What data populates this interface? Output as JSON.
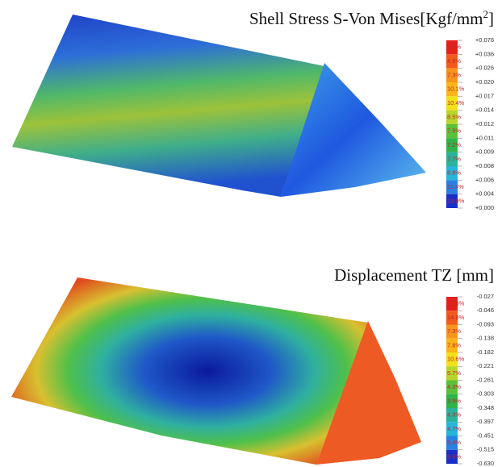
{
  "panels": [
    {
      "title": {
        "text": "Shell Stress S-Von Mises[Kgf/mm",
        "superscript": "2",
        "suffix": "]"
      },
      "legend": {
        "ticks": [
          "+0.076",
          "+0.036",
          "+0.026",
          "+0.020",
          "+0.017",
          "+0.014",
          "+0.012",
          "+0.011",
          "+0.009",
          "+0.008",
          "+0.006",
          "+0.004",
          "+0.000"
        ],
        "percentages": [
          "2.5%",
          "4.6%",
          "7.3%",
          "10.1%",
          "10.4%",
          "8.5%",
          "7.5%",
          "7.2%",
          "7.7%",
          "8.8%",
          "11.4%",
          "13.9%"
        ]
      }
    },
    {
      "title": {
        "text": "Displacement TZ [mm]"
      },
      "legend": {
        "ticks": [
          "-0.027",
          "-0.046",
          "-0.093",
          "-0.138",
          "-0.182",
          "-0.221",
          "-0.261",
          "-0.303",
          "-0.348",
          "-0.397",
          "-0.451",
          "-0.515",
          "-0.630"
        ],
        "percentages": [
          "22.8%",
          "14.8%",
          "7.3%",
          "7.6%",
          "10.6%",
          "5.7%",
          "4.3%",
          "3.9%",
          "4.3%",
          "4.7%",
          "5.4%",
          "8.6%"
        ]
      }
    }
  ]
}
